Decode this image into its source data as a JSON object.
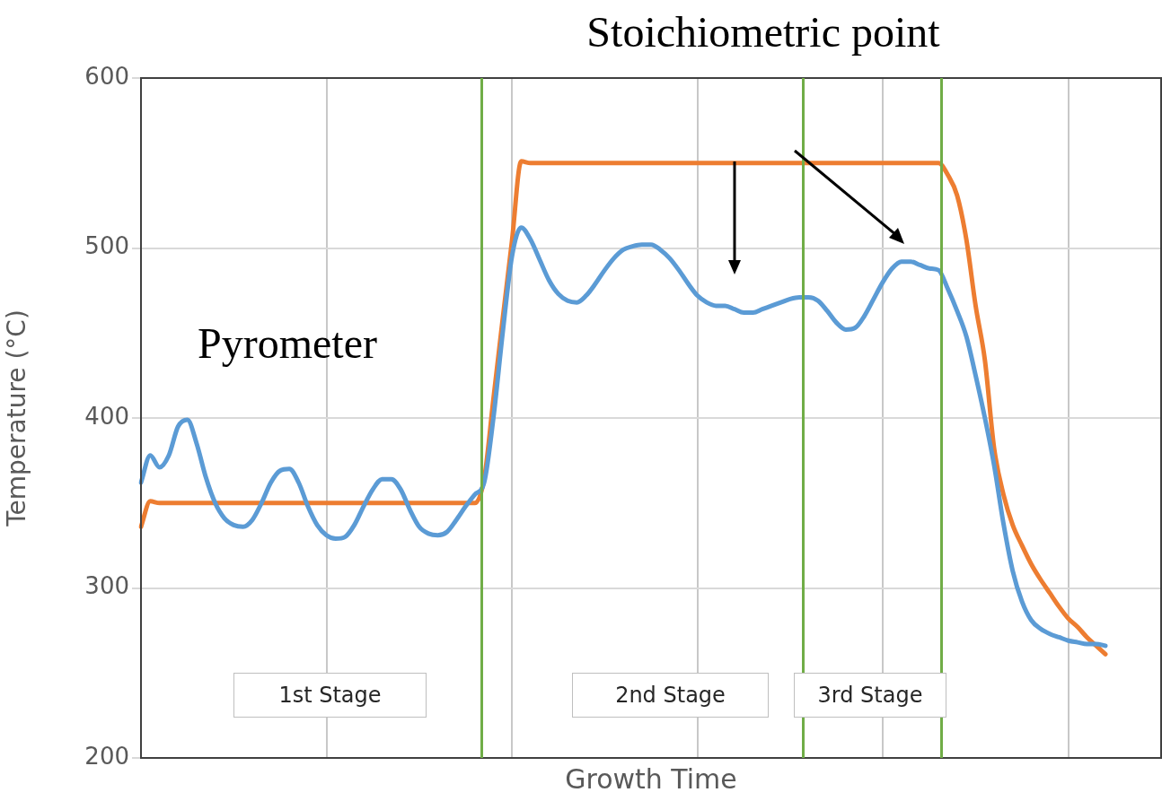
{
  "chart_data": {
    "type": "line",
    "xlabel": "Growth Time",
    "ylabel": "Temperature (°C)",
    "categories": [
      null,
      null,
      null,
      null,
      null,
      null,
      null,
      null,
      null,
      null,
      null,
      null,
      null,
      null,
      null,
      null,
      null,
      null,
      null,
      null,
      null,
      null,
      null,
      null,
      null,
      null,
      null,
      null,
      null,
      null,
      null,
      null,
      null,
      null,
      null,
      null,
      null,
      null,
      null,
      null,
      null,
      null,
      null,
      null,
      null,
      null,
      null,
      null,
      null,
      null,
      null,
      null,
      null,
      null,
      null,
      null,
      null,
      null,
      null,
      null,
      null,
      null,
      null,
      null,
      null,
      null,
      null,
      null,
      null,
      null,
      null,
      null,
      null,
      null,
      null,
      null,
      null,
      null,
      null,
      null,
      null,
      null,
      null,
      null,
      null,
      null,
      null,
      null,
      null,
      null,
      null,
      null,
      null,
      null,
      null,
      null,
      null,
      null,
      null,
      null,
      null,
      null,
      null,
      null,
      null,
      null,
      null,
      null,
      null,
      null,
      null
    ],
    "series": [
      {
        "color": "#5b9bd5",
        "values": [
          362,
          378,
          371,
          378,
          395,
          399,
          385,
          365,
          350,
          341,
          337,
          336,
          340,
          350,
          362,
          369,
          370,
          362,
          348,
          337,
          331,
          329,
          330,
          337,
          348,
          358,
          364,
          364,
          358,
          346,
          336,
          332,
          331,
          333,
          340,
          348,
          355,
          362,
          400,
          450,
          495,
          512,
          505,
          493,
          481,
          473,
          469,
          468,
          472,
          479,
          487,
          494,
          499,
          501,
          502,
          502,
          499,
          494,
          487,
          479,
          472,
          468,
          466,
          466,
          464,
          462,
          462,
          464,
          466,
          468,
          470,
          471,
          471,
          469,
          463,
          456,
          452,
          453,
          460,
          470,
          480,
          488,
          492,
          492,
          490,
          488,
          487,
          476,
          463,
          448,
          425,
          400,
          372,
          338,
          310,
          292,
          281,
          276,
          273,
          271,
          269,
          268,
          267,
          267,
          266,
          null,
          null,
          null,
          null,
          null,
          null
        ]
      },
      {
        "color": "#ed7d31",
        "values": [
          336,
          351,
          350,
          350,
          350,
          350,
          350,
          350,
          350,
          350,
          350,
          350,
          350,
          350,
          350,
          350,
          350,
          350,
          350,
          350,
          350,
          350,
          350,
          350,
          350,
          350,
          350,
          350,
          350,
          350,
          350,
          350,
          350,
          350,
          350,
          350,
          350,
          364,
          411,
          458,
          504,
          551,
          550,
          550,
          550,
          550,
          550,
          550,
          550,
          550,
          550,
          550,
          550,
          550,
          550,
          550,
          550,
          550,
          550,
          550,
          550,
          550,
          550,
          550,
          550,
          550,
          550,
          550,
          550,
          550,
          550,
          550,
          550,
          550,
          550,
          550,
          550,
          550,
          550,
          550,
          550,
          550,
          550,
          550,
          550,
          550,
          550,
          543,
          531,
          505,
          466,
          434,
          382,
          355,
          337,
          325,
          314,
          305,
          297,
          289,
          282,
          277,
          271,
          266,
          261,
          null,
          null,
          null,
          null,
          null,
          null
        ]
      }
    ],
    "ylim": [
      200,
      600
    ],
    "yticks": [
      200,
      300,
      400,
      500,
      600
    ],
    "grid": true,
    "tick_labels": "y",
    "marker": "none",
    "line_style": "solid",
    "annotations": [
      "Stoichiometric point",
      "Pyrometer",
      "1st Stage",
      "2nd Stage",
      "3rd Stage"
    ]
  }
}
